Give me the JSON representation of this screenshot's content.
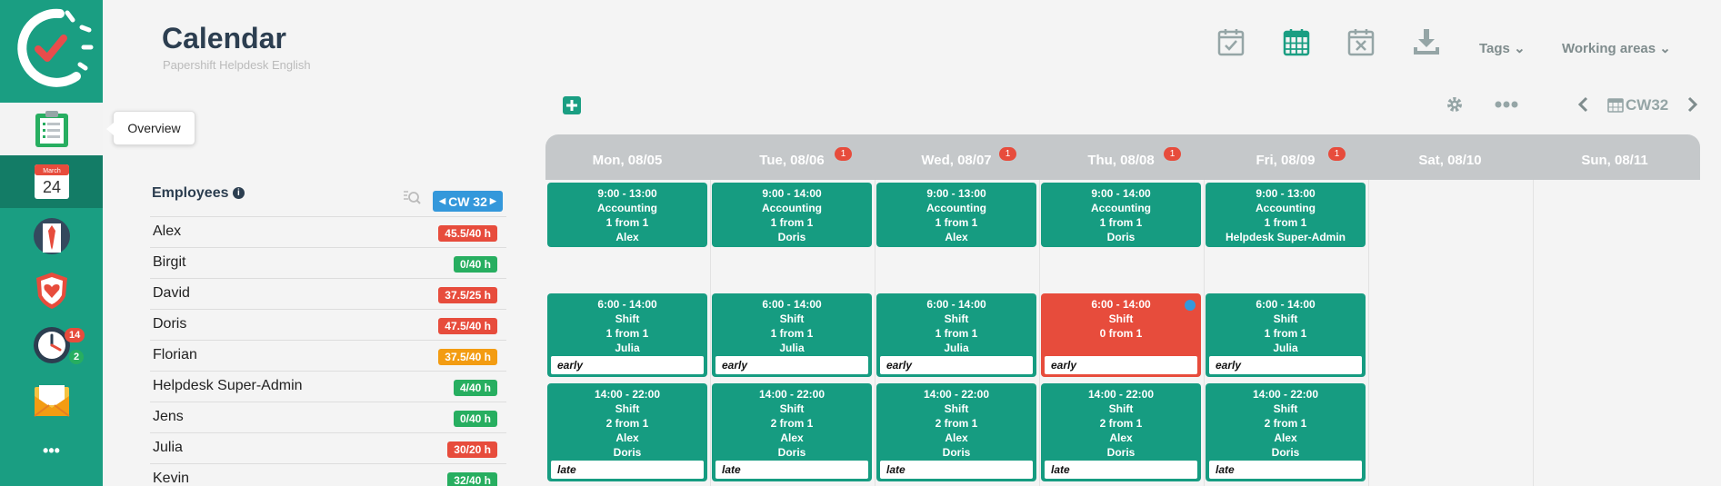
{
  "header": {
    "title": "Calendar",
    "subtitle": "Papershift Helpdesk English",
    "tags_label": "Tags",
    "working_areas_label": "Working areas"
  },
  "sidebar": {
    "tooltip": "Overview",
    "calendar_month": "March",
    "calendar_day": "24",
    "badge_red": "14",
    "badge_green": "2",
    "more_label": "•••"
  },
  "toolbar": {
    "cw_label": "CW32"
  },
  "employees": {
    "heading": "Employees",
    "cw_button": "CW 32",
    "rows": [
      {
        "name": "Alex",
        "hours": "45.5/40 h",
        "color": "#e74c3c"
      },
      {
        "name": "Birgit",
        "hours": "0/40 h",
        "color": "#27ae60"
      },
      {
        "name": "David",
        "hours": "37.5/25 h",
        "color": "#e74c3c"
      },
      {
        "name": "Doris",
        "hours": "47.5/40 h",
        "color": "#e74c3c"
      },
      {
        "name": "Florian",
        "hours": "37.5/40 h",
        "color": "#f39c12"
      },
      {
        "name": "Helpdesk Super-Admin",
        "hours": "4/40 h",
        "color": "#27ae60"
      },
      {
        "name": "Jens",
        "hours": "0/40 h",
        "color": "#27ae60"
      },
      {
        "name": "Julia",
        "hours": "30/20 h",
        "color": "#e74c3c"
      },
      {
        "name": "Kevin",
        "hours": "32/40 h",
        "color": "#27ae60"
      }
    ]
  },
  "days": [
    {
      "label": "Mon, 08/05",
      "badge": ""
    },
    {
      "label": "Tue, 08/06",
      "badge": "1"
    },
    {
      "label": "Wed, 08/07",
      "badge": "1"
    },
    {
      "label": "Thu, 08/08",
      "badge": "1"
    },
    {
      "label": "Fri, 08/09",
      "badge": "1"
    },
    {
      "label": "Sat, 08/10",
      "badge": ""
    },
    {
      "label": "Sun, 08/11",
      "badge": ""
    }
  ],
  "shifts": {
    "accounting": [
      {
        "time": "9:00 - 13:00",
        "name": "Accounting",
        "count": "1 from 1",
        "people": [
          "Alex"
        ]
      },
      {
        "time": "9:00 - 14:00",
        "name": "Accounting",
        "count": "1 from 1",
        "people": [
          "Doris"
        ]
      },
      {
        "time": "9:00 - 13:00",
        "name": "Accounting",
        "count": "1 from 1",
        "people": [
          "Alex"
        ]
      },
      {
        "time": "9:00 - 14:00",
        "name": "Accounting",
        "count": "1 from 1",
        "people": [
          "Doris"
        ]
      },
      {
        "time": "9:00 - 13:00",
        "name": "Accounting",
        "count": "1 from 1",
        "people": [
          "Helpdesk Super-Admin"
        ]
      }
    ],
    "early": [
      {
        "time": "6:00 - 14:00",
        "name": "Shift",
        "count": "1 from 1",
        "people": [
          "Julia"
        ],
        "tag": "early",
        "state": "ok"
      },
      {
        "time": "6:00 - 14:00",
        "name": "Shift",
        "count": "1 from 1",
        "people": [
          "Julia"
        ],
        "tag": "early",
        "state": "ok"
      },
      {
        "time": "6:00 - 14:00",
        "name": "Shift",
        "count": "1 from 1",
        "people": [
          "Julia"
        ],
        "tag": "early",
        "state": "ok"
      },
      {
        "time": "6:00 - 14:00",
        "name": "Shift",
        "count": "0 from 1",
        "people": [],
        "tag": "early",
        "state": "unfilled"
      },
      {
        "time": "6:00 - 14:00",
        "name": "Shift",
        "count": "1 from 1",
        "people": [
          "Julia"
        ],
        "tag": "early",
        "state": "ok"
      }
    ],
    "late": [
      {
        "time": "14:00 - 22:00",
        "name": "Shift",
        "count": "2 from 1",
        "people": [
          "Alex",
          "Doris"
        ],
        "tag": "late"
      },
      {
        "time": "14:00 - 22:00",
        "name": "Shift",
        "count": "2 from 1",
        "people": [
          "Alex",
          "Doris"
        ],
        "tag": "late"
      },
      {
        "time": "14:00 - 22:00",
        "name": "Shift",
        "count": "2 from 1",
        "people": [
          "Alex",
          "Doris"
        ],
        "tag": "late"
      },
      {
        "time": "14:00 - 22:00",
        "name": "Shift",
        "count": "2 from 1",
        "people": [
          "Alex",
          "Doris"
        ],
        "tag": "late"
      },
      {
        "time": "14:00 - 22:00",
        "name": "Shift",
        "count": "2 from 1",
        "people": [
          "Alex",
          "Doris"
        ],
        "tag": "late"
      }
    ]
  }
}
